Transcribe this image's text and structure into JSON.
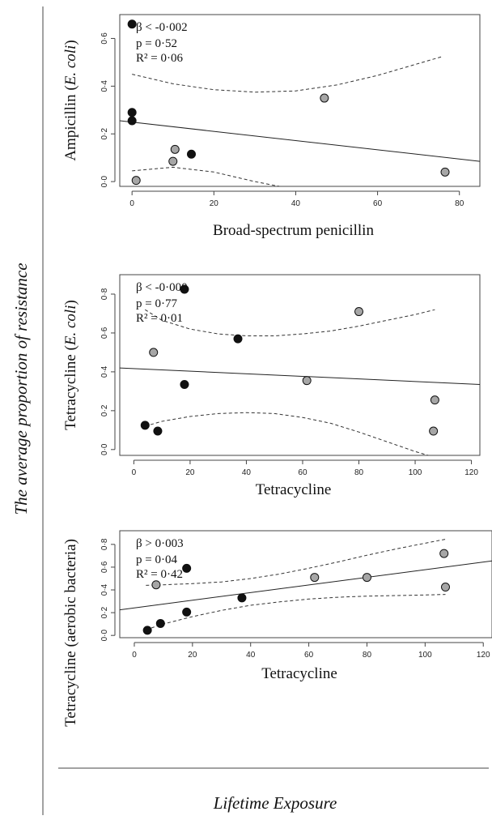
{
  "figure": {
    "ylabel_global": "The average proportion of resistance",
    "xlabel_global": "Lifetime Exposure"
  },
  "chart_data": [
    {
      "type": "scatter",
      "title": "",
      "xlabel": "Broad-spectrum penicillin",
      "ylabel_pre": "Ampicillin (",
      "ylabel_em": "E. coli",
      "ylabel_post": ")",
      "xlim": [
        -3,
        85
      ],
      "ylim": [
        -0.02,
        0.7
      ],
      "xticks": [
        0,
        20,
        40,
        60,
        80
      ],
      "yticks": [
        0.0,
        0.2,
        0.4,
        0.6
      ],
      "ytick_labels": [
        "0·0",
        "0·2",
        "0·4",
        "0·6"
      ],
      "stats": {
        "beta": "β < -0·002",
        "p": "p = 0·52",
        "r2": "R² = 0·06"
      },
      "fit_line": {
        "x": [
          -3,
          85
        ],
        "y": [
          0.255,
          0.085
        ]
      },
      "ci_upper": {
        "x": [
          0,
          10,
          20,
          30,
          40,
          50,
          60,
          70,
          76
        ],
        "y": [
          0.45,
          0.41,
          0.385,
          0.375,
          0.38,
          0.405,
          0.445,
          0.495,
          0.525
        ]
      },
      "ci_lower": {
        "x": [
          0,
          10,
          20,
          30,
          36
        ],
        "y": [
          0.045,
          0.06,
          0.04,
          0.0,
          -0.02
        ]
      },
      "series": [
        {
          "color": "#111111",
          "x": [
            0,
            0,
            0,
            14.5
          ],
          "y": [
            0.66,
            0.29,
            0.255,
            0.115
          ]
        },
        {
          "color": "#a6a6a6",
          "x": [
            1,
            10,
            10.5,
            47,
            76.5
          ],
          "y": [
            0.005,
            0.085,
            0.135,
            0.35,
            0.04
          ]
        }
      ]
    },
    {
      "type": "scatter",
      "title": "",
      "xlabel": "Tetracycline",
      "ylabel_pre": "Tetracycline (",
      "ylabel_em": "E. coli",
      "ylabel_post": ")",
      "xlim": [
        -5,
        123
      ],
      "ylim": [
        -0.03,
        0.9
      ],
      "xticks": [
        0,
        20,
        40,
        60,
        80,
        100,
        120
      ],
      "yticks": [
        0.0,
        0.2,
        0.4,
        0.6,
        0.8
      ],
      "ytick_labels": [
        "0·0",
        "0·2",
        "0·4",
        "0·6",
        "0·8"
      ],
      "stats": {
        "beta": "β < -0·000",
        "p": "p = 0·77",
        "r2": "R² = 0·01"
      },
      "fit_line": {
        "x": [
          -5,
          123
        ],
        "y": [
          0.42,
          0.335
        ]
      },
      "ci_upper": {
        "x": [
          4,
          10,
          20,
          30,
          40,
          50,
          60,
          70,
          80,
          90,
          100,
          107
        ],
        "y": [
          0.72,
          0.665,
          0.62,
          0.595,
          0.585,
          0.585,
          0.595,
          0.61,
          0.635,
          0.665,
          0.695,
          0.72
        ]
      },
      "ci_lower": {
        "x": [
          4,
          10,
          20,
          30,
          40,
          50,
          60,
          70,
          80,
          90,
          100,
          107
        ],
        "y": [
          0.12,
          0.145,
          0.17,
          0.185,
          0.19,
          0.185,
          0.165,
          0.135,
          0.09,
          0.04,
          -0.01,
          -0.04
        ]
      },
      "series": [
        {
          "color": "#111111",
          "x": [
            4,
            8.5,
            18,
            18,
            37
          ],
          "y": [
            0.125,
            0.095,
            0.335,
            0.825,
            0.57
          ]
        },
        {
          "color": "#a6a6a6",
          "x": [
            7,
            61.5,
            80,
            106.5,
            107
          ],
          "y": [
            0.5,
            0.355,
            0.71,
            0.095,
            0.255
          ]
        }
      ]
    },
    {
      "type": "scatter",
      "title": "",
      "xlabel": "Tetracycline",
      "ylabel_pre": "Tetracycline (aerobic bacteria)",
      "ylabel_em": "",
      "ylabel_post": "",
      "xlim": [
        -5,
        123
      ],
      "ylim": [
        -0.02,
        0.92
      ],
      "xticks": [
        0,
        20,
        40,
        60,
        80,
        100,
        120
      ],
      "yticks": [
        0.0,
        0.2,
        0.4,
        0.6,
        0.8
      ],
      "ytick_labels": [
        "0·0",
        "0·2",
        "0·4",
        "0·6",
        "0·8"
      ],
      "stats": {
        "beta": "β > 0·003",
        "p": "p = 0·04",
        "r2": "R² = 0·42"
      },
      "fit_line": {
        "x": [
          -5,
          123
        ],
        "y": [
          0.225,
          0.655
        ]
      },
      "ci_upper": {
        "x": [
          4,
          10,
          20,
          30,
          40,
          50,
          60,
          70,
          80,
          90,
          100,
          107
        ],
        "y": [
          0.44,
          0.445,
          0.455,
          0.47,
          0.5,
          0.54,
          0.59,
          0.645,
          0.705,
          0.76,
          0.81,
          0.845
        ]
      },
      "ci_lower": {
        "x": [
          4,
          10,
          20,
          30,
          40,
          50,
          60,
          70,
          80,
          90,
          100,
          107
        ],
        "y": [
          0.05,
          0.1,
          0.165,
          0.22,
          0.265,
          0.295,
          0.32,
          0.335,
          0.345,
          0.35,
          0.355,
          0.36
        ]
      },
      "series": [
        {
          "color": "#111111",
          "x": [
            4.5,
            9,
            18,
            18,
            37
          ],
          "y": [
            0.045,
            0.105,
            0.205,
            0.59,
            0.33
          ]
        },
        {
          "color": "#a6a6a6",
          "x": [
            7.5,
            62,
            80,
            106.5,
            107
          ],
          "y": [
            0.445,
            0.51,
            0.51,
            0.72,
            0.425
          ]
        }
      ]
    }
  ]
}
